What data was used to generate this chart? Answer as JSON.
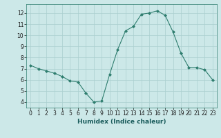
{
  "x": [
    0,
    1,
    2,
    3,
    4,
    5,
    6,
    7,
    8,
    9,
    10,
    11,
    12,
    13,
    14,
    15,
    16,
    17,
    18,
    19,
    20,
    21,
    22,
    23
  ],
  "y": [
    7.3,
    7.0,
    6.8,
    6.6,
    6.3,
    5.9,
    5.8,
    4.8,
    4.0,
    4.1,
    6.5,
    8.7,
    10.4,
    10.8,
    11.9,
    12.0,
    12.2,
    11.8,
    10.3,
    8.4,
    7.1,
    7.1,
    6.9,
    6.0
  ],
  "line_color": "#2e7d6e",
  "marker_color": "#2e7d6e",
  "bg_color": "#cce8e8",
  "grid_color": "#aacfcf",
  "xlabel": "Humidex (Indice chaleur)",
  "xlim": [
    -0.5,
    23.5
  ],
  "ylim": [
    3.5,
    12.8
  ],
  "yticks": [
    4,
    5,
    6,
    7,
    8,
    9,
    10,
    11,
    12
  ],
  "xticks": [
    0,
    1,
    2,
    3,
    4,
    5,
    6,
    7,
    8,
    9,
    10,
    11,
    12,
    13,
    14,
    15,
    16,
    17,
    18,
    19,
    20,
    21,
    22,
    23
  ],
  "tick_fontsize": 5.5,
  "label_fontsize": 6.5
}
